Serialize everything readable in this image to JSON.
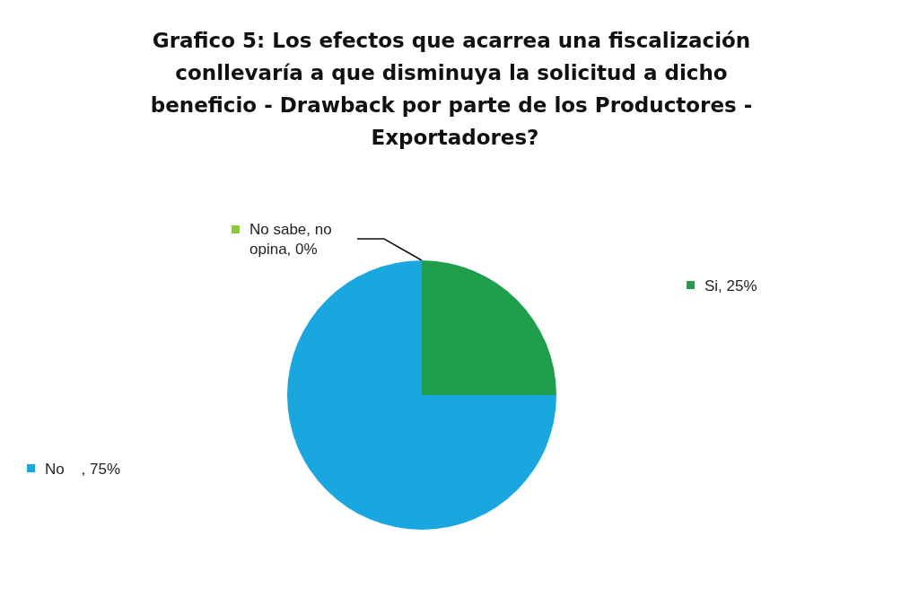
{
  "chart_data": {
    "type": "pie",
    "title": "Grafico 5: Los efectos que acarrea una fiscalización conllevaría a que disminuya la solicitud a dicho beneficio - Drawback por parte de los Productores - Exportadores?",
    "categories": [
      "Si, 25%",
      "No    , 75%",
      "No sabe, no opina, 0%"
    ],
    "values": [
      25,
      75,
      0
    ],
    "colors": [
      "#1f9e4c",
      "#1aa6df",
      "#8dc63f"
    ],
    "legend": "top left"
  }
}
